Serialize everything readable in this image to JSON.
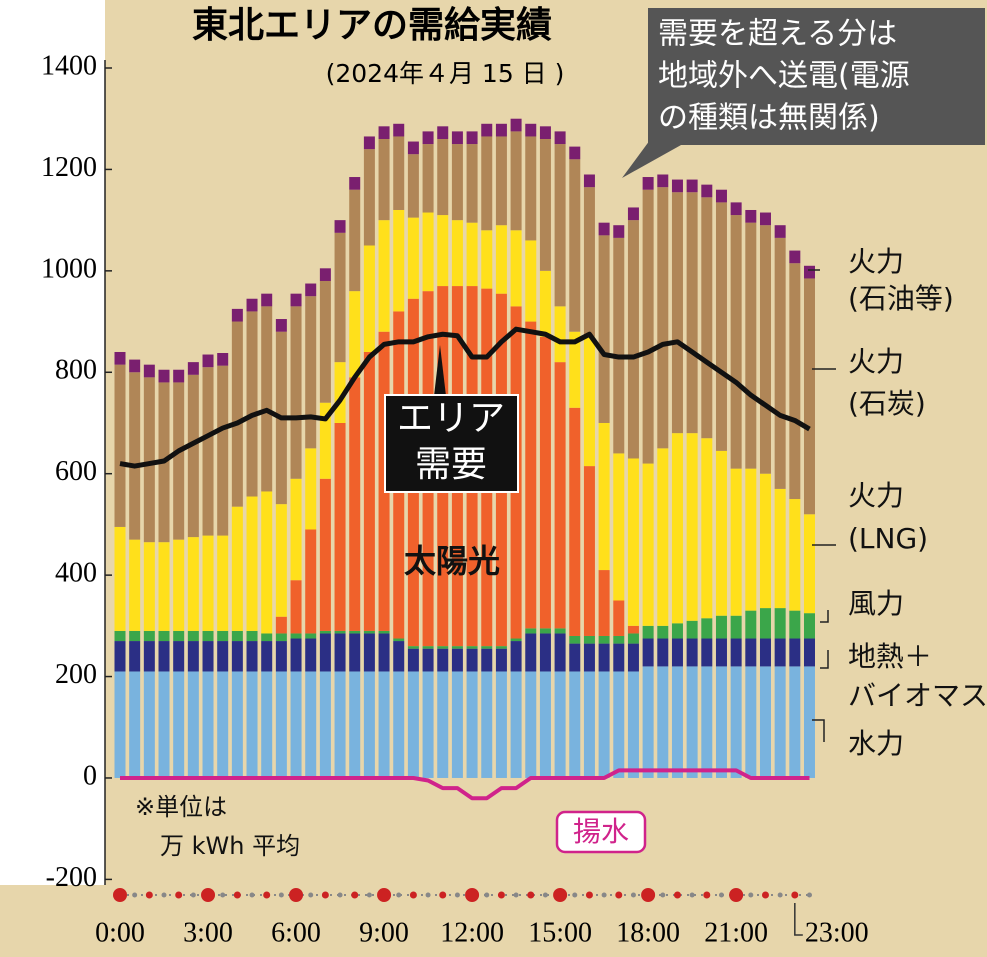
{
  "chart_data": {
    "type": "bar",
    "title": "東北エリアの需給実績",
    "subtitle": "(2024年４月 15 日 )",
    "callout": [
      "需要を超える分は",
      "地域外へ送電(電源",
      "の種類は無関係)"
    ],
    "demand_label": [
      "エリア",
      "需要"
    ],
    "solar_label": "太陽光",
    "pumped_label": "揚水",
    "unit_note": [
      "※単位は",
      "万 kWh 平均"
    ],
    "categories": [
      "0:00",
      null,
      null,
      null,
      null,
      null,
      "3:00",
      null,
      null,
      null,
      null,
      null,
      "6:00",
      null,
      null,
      null,
      null,
      null,
      "9:00",
      null,
      null,
      null,
      null,
      null,
      "12:00",
      null,
      null,
      null,
      null,
      null,
      "15:00",
      null,
      null,
      null,
      null,
      null,
      "18:00",
      null,
      null,
      null,
      null,
      null,
      "21:00",
      null,
      null,
      null,
      "23:00",
      null
    ],
    "ylim": [
      -200,
      1400
    ],
    "yticks": [
      -200,
      0,
      200,
      400,
      600,
      800,
      1000,
      1200,
      1400
    ],
    "series": [
      {
        "name": [
          "水力"
        ],
        "type": "bar",
        "color": "#79b3de",
        "values": [
          210,
          210,
          210,
          210,
          210,
          210,
          210,
          210,
          210,
          210,
          210,
          210,
          210,
          210,
          210,
          210,
          210,
          210,
          210,
          210,
          210,
          210,
          210,
          210,
          210,
          210,
          210,
          210,
          210,
          210,
          210,
          210,
          210,
          210,
          210,
          210,
          220,
          220,
          220,
          220,
          220,
          220,
          220,
          220,
          220,
          220,
          220,
          220
        ]
      },
      {
        "name": [
          "地熱＋",
          "バイオマス"
        ],
        "type": "bar",
        "color": "#2b2f85",
        "values": [
          60,
          60,
          60,
          60,
          60,
          60,
          60,
          60,
          60,
          60,
          60,
          60,
          65,
          65,
          75,
          75,
          75,
          75,
          75,
          60,
          45,
          45,
          45,
          45,
          45,
          45,
          45,
          60,
          75,
          75,
          75,
          55,
          55,
          55,
          55,
          55,
          55,
          55,
          55,
          55,
          55,
          55,
          55,
          55,
          55,
          55,
          55,
          55
        ]
      },
      {
        "name": [
          "風力"
        ],
        "type": "bar",
        "color": "#3ba64a",
        "values": [
          20,
          20,
          20,
          20,
          20,
          20,
          20,
          20,
          20,
          20,
          15,
          15,
          10,
          10,
          5,
          5,
          5,
          5,
          5,
          5,
          5,
          5,
          5,
          5,
          5,
          5,
          5,
          5,
          10,
          10,
          10,
          15,
          15,
          15,
          15,
          20,
          25,
          25,
          30,
          35,
          40,
          45,
          45,
          55,
          60,
          60,
          55,
          50
        ]
      },
      {
        "name": [
          "太陽光"
        ],
        "type": "bar",
        "color": "#f0612b",
        "values": [
          0,
          0,
          0,
          0,
          0,
          0,
          0,
          0,
          0,
          0,
          0,
          33,
          105,
          205,
          300,
          410,
          500,
          550,
          590,
          645,
          685,
          700,
          710,
          710,
          710,
          705,
          695,
          655,
          605,
          575,
          525,
          450,
          335,
          130,
          70,
          15,
          0,
          0,
          0,
          0,
          0,
          0,
          0,
          0,
          0,
          0,
          0,
          0
        ]
      },
      {
        "name": [
          "火力",
          "(LNG)"
        ],
        "type": "bar",
        "color": "#ffe01b",
        "values": [
          205,
          180,
          175,
          175,
          180,
          185,
          188,
          188,
          245,
          265,
          280,
          222,
          200,
          160,
          150,
          120,
          170,
          210,
          220,
          200,
          160,
          155,
          140,
          130,
          125,
          115,
          135,
          150,
          160,
          130,
          110,
          150,
          255,
          290,
          290,
          330,
          320,
          350,
          375,
          370,
          355,
          325,
          290,
          280,
          265,
          235,
          220,
          195
        ]
      },
      {
        "name": [
          "火力",
          "(石炭)"
        ],
        "type": "bar",
        "color": "#b08657",
        "values": [
          320,
          330,
          325,
          315,
          310,
          320,
          332,
          335,
          365,
          365,
          365,
          340,
          340,
          300,
          240,
          255,
          200,
          190,
          160,
          145,
          125,
          135,
          150,
          150,
          155,
          185,
          175,
          195,
          205,
          260,
          320,
          340,
          295,
          370,
          425,
          470,
          540,
          515,
          475,
          475,
          475,
          490,
          500,
          485,
          490,
          495,
          465,
          465
        ]
      },
      {
        "name": [
          "火力",
          "(石油等)"
        ],
        "type": "bar",
        "color": "#7a1f6f",
        "values": [
          25,
          25,
          25,
          25,
          25,
          25,
          25,
          25,
          25,
          25,
          25,
          25,
          25,
          25,
          25,
          25,
          25,
          25,
          25,
          25,
          25,
          25,
          25,
          25,
          25,
          25,
          25,
          25,
          25,
          25,
          25,
          25,
          25,
          25,
          25,
          25,
          25,
          25,
          25,
          25,
          25,
          25,
          25,
          25,
          25,
          25,
          25,
          25
        ]
      },
      {
        "name": [
          "エリア",
          "需要"
        ],
        "type": "line",
        "color": "#111111",
        "values": [
          620,
          615,
          620,
          625,
          645,
          660,
          675,
          690,
          700,
          715,
          725,
          710,
          710,
          712,
          708,
          745,
          790,
          830,
          855,
          860,
          860,
          870,
          875,
          872,
          830,
          830,
          860,
          885,
          880,
          875,
          860,
          860,
          875,
          835,
          830,
          830,
          840,
          855,
          860,
          840,
          820,
          800,
          780,
          755,
          735,
          715,
          705,
          688
        ]
      },
      {
        "name": [
          "揚水"
        ],
        "type": "line",
        "color": "#d0238b",
        "values": [
          0,
          0,
          0,
          0,
          0,
          0,
          0,
          0,
          0,
          0,
          0,
          0,
          0,
          0,
          0,
          0,
          0,
          0,
          0,
          0,
          0,
          -5,
          -20,
          -20,
          -40,
          -40,
          -20,
          -20,
          0,
          0,
          0,
          0,
          0,
          0,
          15,
          15,
          15,
          15,
          15,
          15,
          15,
          15,
          15,
          0,
          0,
          0,
          0,
          0
        ]
      }
    ]
  }
}
